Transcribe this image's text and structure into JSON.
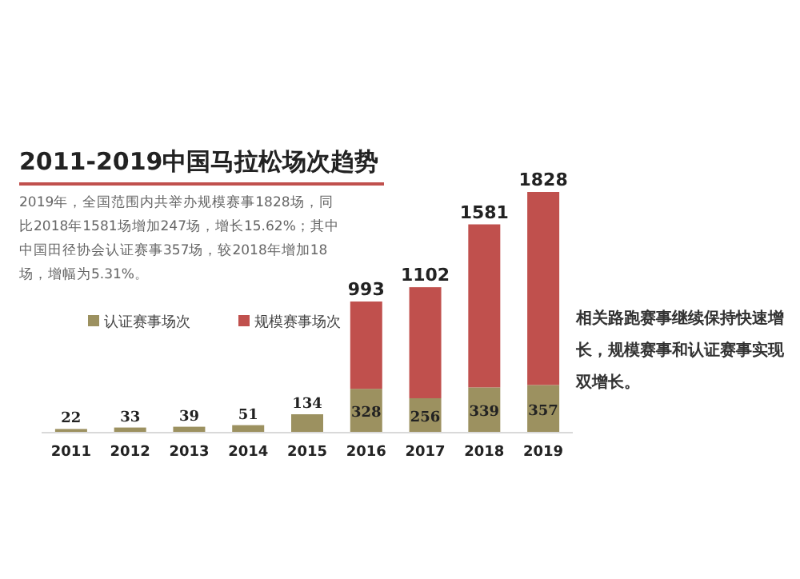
{
  "chart_data": {
    "type": "bar",
    "stacked": true,
    "title": "2011-2019中国马拉松场次趋势",
    "subtitle": "2019年，全国范围内共举办规模赛事1828场，同比2018年1581场增加247场，增长15.62%；其中中国田径协会认证赛事357场，较2018年增加18场，增幅为5.31%。",
    "categories": [
      "2011",
      "2012",
      "2013",
      "2014",
      "2015",
      "2016",
      "2017",
      "2018",
      "2019"
    ],
    "series": [
      {
        "name": "认证赛事场次",
        "color": "#9c9160",
        "values": [
          22,
          33,
          39,
          51,
          134,
          328,
          256,
          339,
          357
        ],
        "value_labels": [
          null,
          null,
          null,
          null,
          null,
          "328",
          "256",
          "339",
          "357"
        ]
      },
      {
        "name": "规模赛事场次",
        "color": "#c0504d",
        "values": [
          null,
          null,
          null,
          null,
          null,
          665,
          846,
          1242,
          1471
        ]
      }
    ],
    "totals": [
      "22",
      "33",
      "39",
      "51",
      "134",
      "993",
      "1102",
      "1581",
      "1828"
    ],
    "legend": "left",
    "annotations": [
      "相关路跑赛事继续保持快速增长，规模赛事和认证赛事实现双增长。"
    ]
  }
}
